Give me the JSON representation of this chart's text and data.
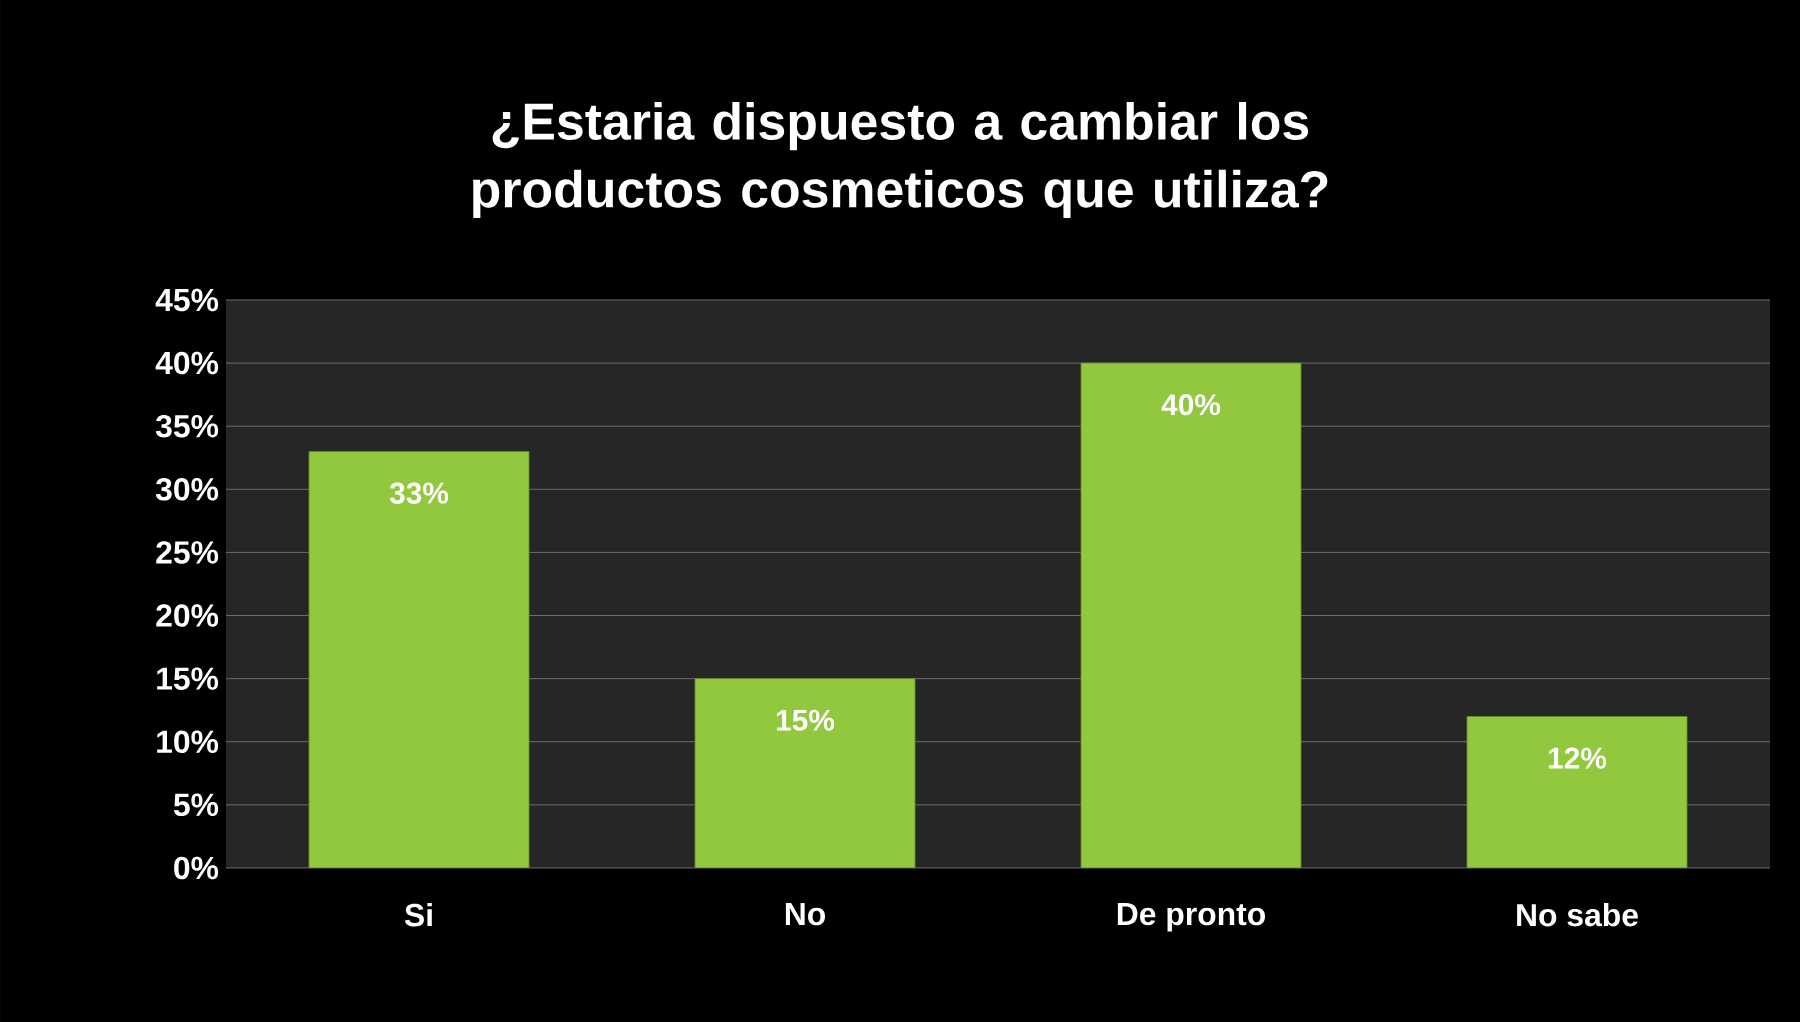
{
  "chart_data": {
    "type": "bar",
    "title": "¿Estaria dispuesto a cambiar los productos cosmeticos que utiliza?",
    "categories": [
      "Si",
      "No",
      "De pronto",
      "No sabe"
    ],
    "values": [
      33,
      15,
      40,
      12
    ],
    "color": "#92c83e",
    "value_labels": [
      "33%",
      "15%",
      "40%",
      "12%"
    ],
    "ylim": [
      0,
      45
    ],
    "yticks": [
      {
        "value": 0,
        "label": "0%"
      },
      {
        "value": 5,
        "label": "5%"
      },
      {
        "value": 10,
        "label": "10%"
      },
      {
        "value": 15,
        "label": "15%"
      },
      {
        "value": 20,
        "label": "20%"
      },
      {
        "value": 25,
        "label": "25%"
      },
      {
        "value": 30,
        "label": "30%"
      },
      {
        "value": 35,
        "label": "35%"
      },
      {
        "value": 40,
        "label": "40%"
      },
      {
        "value": 45,
        "label": "45%"
      }
    ],
    "grid": "y"
  }
}
